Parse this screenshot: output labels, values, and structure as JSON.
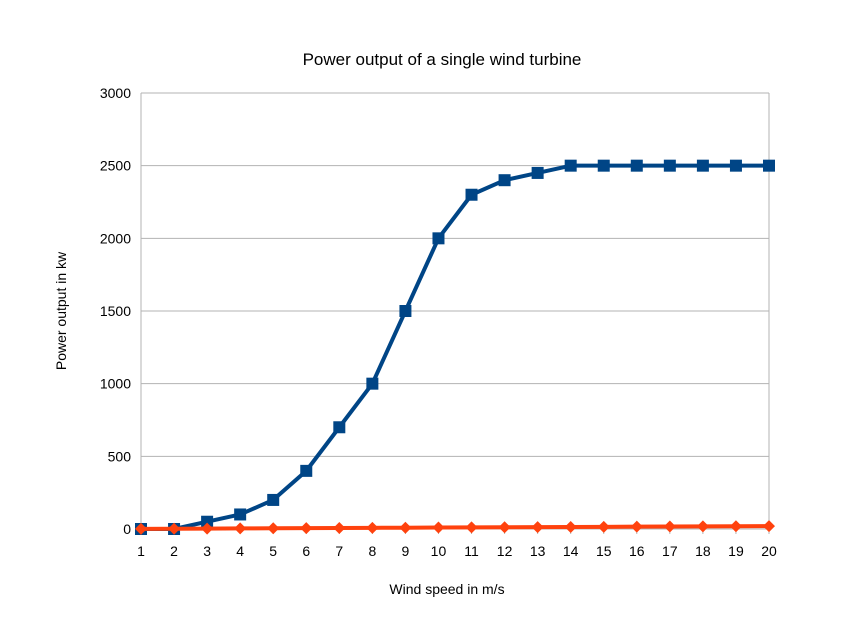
{
  "chart_data": {
    "type": "line",
    "title": "Power output of a single wind turbine",
    "xlabel": "Wind speed in m/s",
    "ylabel": "Power output in kw",
    "x": [
      1,
      2,
      3,
      4,
      5,
      6,
      7,
      8,
      9,
      10,
      11,
      12,
      13,
      14,
      15,
      16,
      17,
      18,
      19,
      20
    ],
    "ylim": [
      0,
      3000
    ],
    "yticks": [
      0,
      500,
      1000,
      1500,
      2000,
      2500,
      3000
    ],
    "grid": true,
    "legend": "none",
    "series": [
      {
        "color": "#004586",
        "marker": "square",
        "values": [
          0,
          0,
          50,
          100,
          200,
          400,
          700,
          1000,
          1500,
          2000,
          2300,
          2400,
          2450,
          2500,
          2500,
          2500,
          2500,
          2500,
          2500,
          2500
        ]
      },
      {
        "color": "#ff420e",
        "marker": "diamond",
        "values": [
          1,
          2,
          3,
          4,
          5,
          6,
          7,
          8,
          9,
          10,
          11,
          12,
          13,
          14,
          15,
          16,
          17,
          18,
          19,
          20
        ]
      }
    ]
  }
}
